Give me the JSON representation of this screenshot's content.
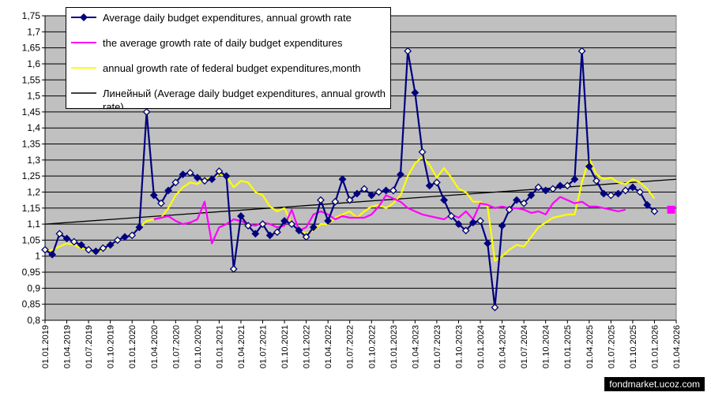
{
  "chart_data": {
    "type": "line",
    "title": "",
    "xlabel": "",
    "ylabel": "",
    "ylim": [
      0.8,
      1.75
    ],
    "yticks": [
      "0,8",
      "0,85",
      "0,9",
      "0,95",
      "1",
      "1,05",
      "1,1",
      "1,15",
      "1,2",
      "1,25",
      "1,3",
      "1,35",
      "1,4",
      "1,45",
      "1,5",
      "1,55",
      "1,6",
      "1,65",
      "1,7",
      "1,75"
    ],
    "xticks": [
      "01.01.2019",
      "01.04.2019",
      "01.07.2019",
      "01.10.2019",
      "01.01.2020",
      "01.04.2020",
      "01.07.2020",
      "01.10.2020",
      "01.01.2021",
      "01.04.2021",
      "01.07.2021",
      "01.10.2021",
      "01.01.2022",
      "01.04.2022",
      "01.07.2022",
      "01.10.2022",
      "01.01.2023",
      "01.04.2023",
      "01.07.2023",
      "01.10.2023",
      "01.01.2024",
      "01.04.2024",
      "01.07.2024",
      "01.10.2024",
      "01.01.2025",
      "01.04.2025",
      "01.07.2025",
      "01.10.2025",
      "01.01.2026",
      "01.04.2026"
    ],
    "grid": true,
    "legend_position": "top-left",
    "plot_background": "#C0C0C0",
    "series": [
      {
        "name": "Average daily budget expenditures,  annual growth rate",
        "color": "#000080",
        "marker": "diamond",
        "values": [
          1.02,
          1.005,
          1.07,
          1.055,
          1.045,
          1.035,
          1.02,
          1.015,
          1.025,
          1.035,
          1.05,
          1.06,
          1.065,
          1.09,
          1.45,
          1.19,
          1.165,
          1.205,
          1.23,
          1.255,
          1.26,
          1.245,
          1.235,
          1.24,
          1.265,
          1.25,
          0.96,
          1.125,
          1.095,
          1.07,
          1.1,
          1.065,
          1.075,
          1.11,
          1.1,
          1.08,
          1.06,
          1.09,
          1.175,
          1.11,
          1.17,
          1.24,
          1.175,
          1.195,
          1.21,
          1.19,
          1.2,
          1.205,
          1.205,
          1.255,
          1.64,
          1.51,
          1.325,
          1.22,
          1.23,
          1.175,
          1.125,
          1.1,
          1.08,
          1.105,
          1.11,
          1.04,
          0.84,
          1.095,
          1.145,
          1.175,
          1.165,
          1.19,
          1.215,
          1.205,
          1.21,
          1.22,
          1.22,
          1.24,
          1.64,
          1.28,
          1.235,
          1.195,
          1.19,
          1.195,
          1.205,
          1.215,
          1.2,
          1.16,
          1.14
        ]
      },
      {
        "name": "the average growth rate of daily budget expenditures",
        "color": "#FF00FF",
        "start_index": 14,
        "values": [
          null,
          1.115,
          1.12,
          1.125,
          1.11,
          1.1,
          1.105,
          1.115,
          1.17,
          1.04,
          1.09,
          1.1,
          1.115,
          1.11,
          1.1,
          1.095,
          1.105,
          1.1,
          1.09,
          1.095,
          1.145,
          1.08,
          1.09,
          1.13,
          1.14,
          1.13,
          1.115,
          1.125,
          1.12,
          1.12,
          1.12,
          1.13,
          1.155,
          1.19,
          1.18,
          1.17,
          1.15,
          1.14,
          1.13,
          1.125,
          1.12,
          1.115,
          1.13,
          1.12,
          1.14,
          1.115,
          1.165,
          1.16,
          1.15,
          1.155,
          1.15,
          1.15,
          1.145,
          1.135,
          1.14,
          1.13,
          1.165,
          1.185,
          1.175,
          1.165,
          1.17,
          1.155,
          1.155,
          1.15,
          1.145,
          1.14,
          1.145
        ]
      },
      {
        "name": "annual growth rate of federal budget expenditures,month",
        "color": "#FFFF00",
        "values": [
          1.015,
          1.02,
          1.03,
          1.04,
          1.035,
          1.025,
          1.02,
          1.01,
          1.02,
          1.03,
          1.05,
          1.06,
          1.065,
          1.09,
          1.11,
          1.115,
          1.12,
          1.15,
          1.19,
          1.215,
          1.23,
          1.225,
          1.24,
          1.245,
          1.255,
          1.25,
          1.215,
          1.235,
          1.23,
          1.2,
          1.19,
          1.155,
          1.14,
          1.15,
          1.1,
          1.08,
          1.07,
          1.08,
          1.1,
          1.1,
          1.12,
          1.13,
          1.14,
          1.12,
          1.14,
          1.155,
          1.16,
          1.15,
          1.165,
          1.19,
          1.25,
          1.29,
          1.31,
          1.285,
          1.245,
          1.275,
          1.245,
          1.21,
          1.2,
          1.17,
          1.17,
          1.155,
          0.985,
          1.0,
          1.02,
          1.035,
          1.03,
          1.06,
          1.09,
          1.105,
          1.12,
          1.125,
          1.13,
          1.13,
          1.23,
          1.305,
          1.255,
          1.24,
          1.245,
          1.23,
          1.225,
          1.24,
          1.23,
          1.21,
          1.18
        ]
      },
      {
        "name": "Линейный (Average daily budget expenditures,  annual growth rate)",
        "color": "#000000",
        "type": "trendline",
        "from": 1.1,
        "to": 1.24
      }
    ],
    "end_marker": {
      "value": 1.145,
      "color": "#FF00FF"
    }
  },
  "watermark": "fondmarket.ucoz.com"
}
